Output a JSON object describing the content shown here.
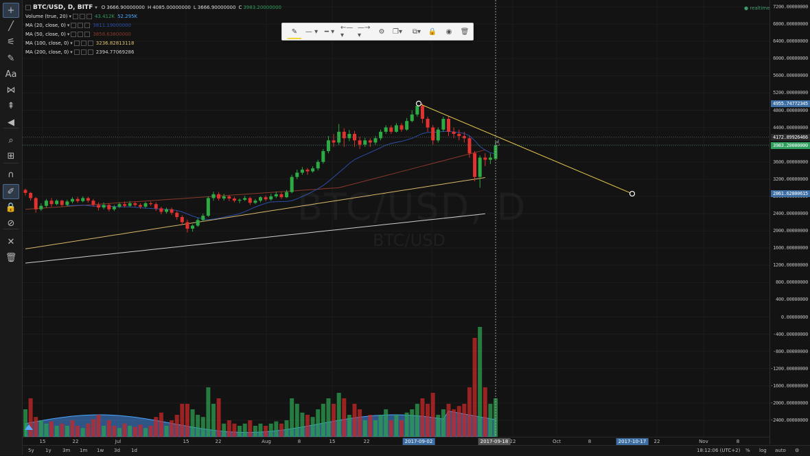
{
  "sidebar": {
    "tools": [
      {
        "name": "crosshair-icon",
        "glyph": "+",
        "active": true
      },
      {
        "name": "trend-line-icon",
        "glyph": "╱"
      },
      {
        "name": "fib-icon",
        "glyph": "⚟"
      },
      {
        "name": "brush-icon",
        "glyph": "✎"
      },
      {
        "name": "text-icon",
        "glyph": "Aa"
      },
      {
        "name": "pattern-icon",
        "glyph": "⋈"
      },
      {
        "name": "prediction-icon",
        "glyph": "⇞"
      },
      {
        "name": "back-arrow-icon",
        "glyph": "◀"
      },
      {
        "name": "zoom-icon",
        "glyph": "⌕"
      },
      {
        "name": "measure-icon",
        "glyph": "⊞"
      },
      {
        "name": "magnet-icon",
        "glyph": "∩"
      },
      {
        "name": "stay-drawing-icon",
        "glyph": "✐",
        "active": true
      },
      {
        "name": "lock-icon",
        "glyph": "🔒"
      },
      {
        "name": "hide-icon",
        "glyph": "⊘"
      },
      {
        "name": "remove-tools-icon",
        "glyph": "✕"
      },
      {
        "name": "trash-icon",
        "glyph": "🗑"
      }
    ]
  },
  "legend": {
    "symbol": "BTC/USD, D, BITF",
    "ohlc": {
      "o_label": "O",
      "o": "3666.90000000",
      "h_label": "H",
      "h": "4085.00000000",
      "l_label": "L",
      "l": "3666.90000000",
      "c_label": "C",
      "c": "3983.20000000"
    },
    "indicators": [
      {
        "name": "Volume (true, 20)",
        "values": [
          "43.412K",
          "52.295K"
        ],
        "colors": [
          "#2e9e5d",
          "#4aa8ff"
        ]
      },
      {
        "name": "MA (20, close, 0)",
        "values": [
          "3811.19000000"
        ],
        "colors": [
          "#2a4ea8"
        ]
      },
      {
        "name": "MA (50, close, 0)",
        "values": [
          "3858.63800000"
        ],
        "colors": [
          "#8a3a2a"
        ]
      },
      {
        "name": "MA (100, close, 0)",
        "values": [
          "3236.82813118"
        ],
        "colors": [
          "#e0c070"
        ]
      },
      {
        "name": "MA (200, close, 0)",
        "values": [
          "2394.77069286"
        ],
        "colors": [
          "#d0d0d0"
        ]
      }
    ]
  },
  "realtime_label": "realtime",
  "watermark": {
    "big": "BTC/USD, D",
    "small": "BTC/USD"
  },
  "price_axis": {
    "ticks": [
      "7200.00000000",
      "6800.00000000",
      "6400.00000000",
      "6000.00000000",
      "5600.00000000",
      "5200.00000000",
      "4800.00000000",
      "4400.00000000",
      "4000.00000000",
      "3600.00000000",
      "3200.00000000",
      "2800.00000000",
      "2400.00000000",
      "2000.00000000",
      "1600.00000000",
      "1200.00000000",
      "800.00000000",
      "400.00000000",
      "0.00000000",
      "-400.00000000",
      "-800.00000000",
      "-1200.00000000",
      "-1600.00000000",
      "-2000.00000000",
      "-2400.00000000"
    ],
    "labels": [
      {
        "value": 4955.74772345,
        "text": "4955.74772345",
        "color": "#3c6ea3"
      },
      {
        "value": 4172.89926466,
        "text": "4172.89926466",
        "color": "#2a2a2a"
      },
      {
        "value": 3983.2,
        "text": "3983.20000000",
        "color": "#2e9e5d"
      },
      {
        "value": 2861.62800615,
        "text": "2861.62800615",
        "color": "#3c6ea3"
      }
    ]
  },
  "time_axis": {
    "ticks": [
      "15",
      "22",
      "Jul",
      "15",
      "22",
      "Aug",
      "8",
      "15",
      "22",
      "8",
      "1",
      "22",
      "Oct",
      "8",
      "22",
      "Nov",
      "8"
    ],
    "highlights": [
      "2017-09-02",
      "2017-09-18",
      "2017-10-17"
    ]
  },
  "toolbar": {
    "items": [
      {
        "name": "color-picker-icon",
        "glyph": "✎"
      },
      {
        "name": "line-style-icon",
        "glyph": "— ▾"
      },
      {
        "name": "line-width-icon",
        "glyph": "━ ▾"
      },
      {
        "name": "left-end-icon",
        "glyph": "←— ▾"
      },
      {
        "name": "right-end-icon",
        "glyph": "—→ ▾"
      },
      {
        "name": "settings-icon",
        "glyph": "⚙"
      },
      {
        "name": "clone-icon",
        "glyph": "❐▾"
      },
      {
        "name": "copy-icon",
        "glyph": "⧉▾"
      },
      {
        "name": "lock-drawing-icon",
        "glyph": "🔒"
      },
      {
        "name": "visibility-icon",
        "glyph": "◉"
      },
      {
        "name": "delete-drawing-icon",
        "glyph": "🗑"
      }
    ]
  },
  "bottom_bar": {
    "timeframes": [
      "5y",
      "1y",
      "3m",
      "1m",
      "1w",
      "3d",
      "1d"
    ],
    "clock": "18:12:06 (UTC+2)",
    "options": [
      "%",
      "log",
      "auto"
    ]
  },
  "chart_data": {
    "type": "candlestick",
    "candles": [
      [
        2950,
        2880,
        2980,
        2820
      ],
      [
        2880,
        2760,
        2900,
        2700
      ],
      [
        2760,
        2500,
        2780,
        2420
      ],
      [
        2500,
        2580,
        2640,
        2460
      ],
      [
        2580,
        2700,
        2740,
        2540
      ],
      [
        2700,
        2620,
        2760,
        2560
      ],
      [
        2620,
        2700,
        2730,
        2590
      ],
      [
        2700,
        2600,
        2720,
        2560
      ],
      [
        2600,
        2680,
        2720,
        2570
      ],
      [
        2680,
        2740,
        2780,
        2640
      ],
      [
        2740,
        2690,
        2790,
        2650
      ],
      [
        2690,
        2760,
        2800,
        2660
      ],
      [
        2760,
        2700,
        2790,
        2650
      ],
      [
        2700,
        2600,
        2740,
        2560
      ],
      [
        2600,
        2540,
        2660,
        2470
      ],
      [
        2540,
        2600,
        2660,
        2500
      ],
      [
        2600,
        2500,
        2640,
        2450
      ],
      [
        2500,
        2560,
        2600,
        2460
      ],
      [
        2560,
        2620,
        2660,
        2530
      ],
      [
        2620,
        2580,
        2680,
        2540
      ],
      [
        2580,
        2640,
        2690,
        2550
      ],
      [
        2640,
        2600,
        2680,
        2560
      ],
      [
        2600,
        2560,
        2640,
        2510
      ],
      [
        2560,
        2640,
        2670,
        2530
      ],
      [
        2640,
        2620,
        2680,
        2580
      ],
      [
        2620,
        2520,
        2660,
        2460
      ],
      [
        2520,
        2440,
        2560,
        2380
      ],
      [
        2440,
        2500,
        2540,
        2400
      ],
      [
        2500,
        2420,
        2540,
        2370
      ],
      [
        2420,
        2320,
        2460,
        2260
      ],
      [
        2320,
        2200,
        2360,
        2130
      ],
      [
        2200,
        2050,
        2260,
        1960
      ],
      [
        2050,
        2120,
        2150,
        1980
      ],
      [
        2120,
        2250,
        2300,
        2090
      ],
      [
        2250,
        2350,
        2400,
        2210
      ],
      [
        2350,
        2760,
        2800,
        2320
      ],
      [
        2760,
        2850,
        2910,
        2700
      ],
      [
        2850,
        2750,
        2900,
        2700
      ],
      [
        2750,
        2800,
        2860,
        2700
      ],
      [
        2800,
        2750,
        2830,
        2690
      ],
      [
        2750,
        2700,
        2790,
        2660
      ],
      [
        2700,
        2720,
        2750,
        2640
      ],
      [
        2720,
        2760,
        2810,
        2690
      ],
      [
        2760,
        2650,
        2790,
        2600
      ],
      [
        2650,
        2700,
        2740,
        2620
      ],
      [
        2700,
        2780,
        2800,
        2660
      ],
      [
        2780,
        2730,
        2820,
        2690
      ],
      [
        2730,
        2800,
        2860,
        2700
      ],
      [
        2800,
        2850,
        2910,
        2760
      ],
      [
        2850,
        2780,
        2900,
        2740
      ],
      [
        2780,
        2900,
        2950,
        2760
      ],
      [
        2900,
        3250,
        3300,
        2870
      ],
      [
        3250,
        3350,
        3420,
        3200
      ],
      [
        3350,
        3420,
        3480,
        3300
      ],
      [
        3420,
        3380,
        3460,
        3300
      ],
      [
        3380,
        3450,
        3500,
        3350
      ],
      [
        3450,
        3600,
        3650,
        3400
      ],
      [
        3600,
        3850,
        3900,
        3560
      ],
      [
        3850,
        4100,
        4200,
        3800
      ],
      [
        4100,
        4050,
        4250,
        3950
      ],
      [
        4050,
        4300,
        4480,
        4000
      ],
      [
        4300,
        4150,
        4380,
        3950
      ],
      [
        4150,
        4250,
        4340,
        4080
      ],
      [
        4250,
        4100,
        4320,
        3950
      ],
      [
        4100,
        4000,
        4180,
        3900
      ],
      [
        4000,
        4100,
        4160,
        3950
      ],
      [
        4100,
        4050,
        4150,
        3950
      ],
      [
        4050,
        4150,
        4200,
        4000
      ],
      [
        4150,
        4300,
        4350,
        4100
      ],
      [
        4300,
        4400,
        4450,
        4250
      ],
      [
        4400,
        4300,
        4450,
        4250
      ],
      [
        4300,
        4450,
        4500,
        4280
      ],
      [
        4450,
        4350,
        4500,
        4300
      ],
      [
        4350,
        4550,
        4620,
        4320
      ],
      [
        4550,
        4700,
        4800,
        4520
      ],
      [
        4700,
        4900,
        4980,
        4650
      ],
      [
        4900,
        4600,
        4960,
        4500
      ],
      [
        4600,
        4400,
        4650,
        4300
      ],
      [
        4400,
        4100,
        4450,
        4000
      ],
      [
        4100,
        4350,
        4400,
        4050
      ],
      [
        4350,
        4600,
        4650,
        4300
      ],
      [
        4600,
        4300,
        4650,
        4200
      ],
      [
        4300,
        4250,
        4400,
        4150
      ],
      [
        4250,
        4200,
        4350,
        4100
      ],
      [
        4200,
        4150,
        4300,
        4050
      ],
      [
        4150,
        3800,
        4200,
        3700
      ],
      [
        3800,
        3250,
        3850,
        3150
      ],
      [
        3250,
        3700,
        3750,
        3000
      ],
      [
        3700,
        3650,
        3800,
        3500
      ],
      [
        3650,
        3700,
        3800,
        3550
      ],
      [
        3666.9,
        3983.2,
        4085,
        3666.9
      ]
    ],
    "volume": [
      [
        "up",
        0.25
      ],
      [
        "down",
        0.35
      ],
      [
        "down",
        0.18
      ],
      [
        "up",
        0.15
      ],
      [
        "up",
        0.12
      ],
      [
        "down",
        0.14
      ],
      [
        "up",
        0.1
      ],
      [
        "down",
        0.12
      ],
      [
        "up",
        0.1
      ],
      [
        "down",
        0.15
      ],
      [
        "down",
        0.1
      ],
      [
        "up",
        0.08
      ],
      [
        "down",
        0.12
      ],
      [
        "down",
        0.16
      ],
      [
        "down",
        0.2
      ],
      [
        "up",
        0.1
      ],
      [
        "down",
        0.15
      ],
      [
        "down",
        0.1
      ],
      [
        "up",
        0.08
      ],
      [
        "down",
        0.12
      ],
      [
        "up",
        0.1
      ],
      [
        "down",
        0.09
      ],
      [
        "down",
        0.11
      ],
      [
        "up",
        0.08
      ],
      [
        "down",
        0.1
      ],
      [
        "down",
        0.18
      ],
      [
        "down",
        0.22
      ],
      [
        "up",
        0.1
      ],
      [
        "down",
        0.15
      ],
      [
        "down",
        0.2
      ],
      [
        "down",
        0.3
      ],
      [
        "down",
        0.3
      ],
      [
        "up",
        0.25
      ],
      [
        "up",
        0.2
      ],
      [
        "up",
        0.18
      ],
      [
        "up",
        0.45
      ],
      [
        "up",
        0.3
      ],
      [
        "down",
        0.35
      ],
      [
        "up",
        0.12
      ],
      [
        "down",
        0.15
      ],
      [
        "down",
        0.12
      ],
      [
        "up",
        0.1
      ],
      [
        "up",
        0.12
      ],
      [
        "down",
        0.15
      ],
      [
        "up",
        0.1
      ],
      [
        "up",
        0.12
      ],
      [
        "down",
        0.1
      ],
      [
        "up",
        0.12
      ],
      [
        "up",
        0.14
      ],
      [
        "down",
        0.12
      ],
      [
        "up",
        0.15
      ],
      [
        "up",
        0.35
      ],
      [
        "up",
        0.3
      ],
      [
        "up",
        0.22
      ],
      [
        "down",
        0.2
      ],
      [
        "up",
        0.18
      ],
      [
        "up",
        0.25
      ],
      [
        "up",
        0.3
      ],
      [
        "up",
        0.35
      ],
      [
        "down",
        0.3
      ],
      [
        "up",
        0.4
      ],
      [
        "down",
        0.35
      ],
      [
        "up",
        0.2
      ],
      [
        "down",
        0.3
      ],
      [
        "down",
        0.25
      ],
      [
        "up",
        0.15
      ],
      [
        "down",
        0.2
      ],
      [
        "up",
        0.15
      ],
      [
        "up",
        0.2
      ],
      [
        "up",
        0.25
      ],
      [
        "down",
        0.15
      ],
      [
        "up",
        0.2
      ],
      [
        "down",
        0.15
      ],
      [
        "up",
        0.22
      ],
      [
        "up",
        0.25
      ],
      [
        "up",
        0.3
      ],
      [
        "down",
        0.35
      ],
      [
        "down",
        0.3
      ],
      [
        "down",
        0.4
      ],
      [
        "up",
        0.2
      ],
      [
        "up",
        0.25
      ],
      [
        "down",
        0.3
      ],
      [
        "down",
        0.25
      ],
      [
        "down",
        0.28
      ],
      [
        "down",
        0.3
      ],
      [
        "down",
        0.45
      ],
      [
        "down",
        0.9
      ],
      [
        "up",
        1.0
      ],
      [
        "down",
        0.45
      ],
      [
        "up",
        0.3
      ],
      [
        "up",
        0.35
      ]
    ],
    "ma20_endpoints": [
      [
        60,
        3350
      ],
      [
        75,
        4550
      ],
      [
        88,
        3650
      ]
    ],
    "ma50_endpoints": [
      [
        0,
        2500
      ],
      [
        60,
        3000
      ],
      [
        88,
        3880
      ]
    ],
    "ma100_endpoints": [
      [
        0,
        1580
      ],
      [
        88,
        3236.83
      ]
    ],
    "ma200_endpoints": [
      [
        0,
        1250
      ],
      [
        88,
        2394.77
      ]
    ],
    "trend_line": {
      "start": [
        "2017-09-02",
        4955.74772345
      ],
      "end": [
        "2017-10-17",
        2861.62800615
      ]
    },
    "crosshair": {
      "date": "2017-09-18",
      "price": 4172.89926466
    },
    "price_range": [
      -2600,
      7300
    ]
  }
}
